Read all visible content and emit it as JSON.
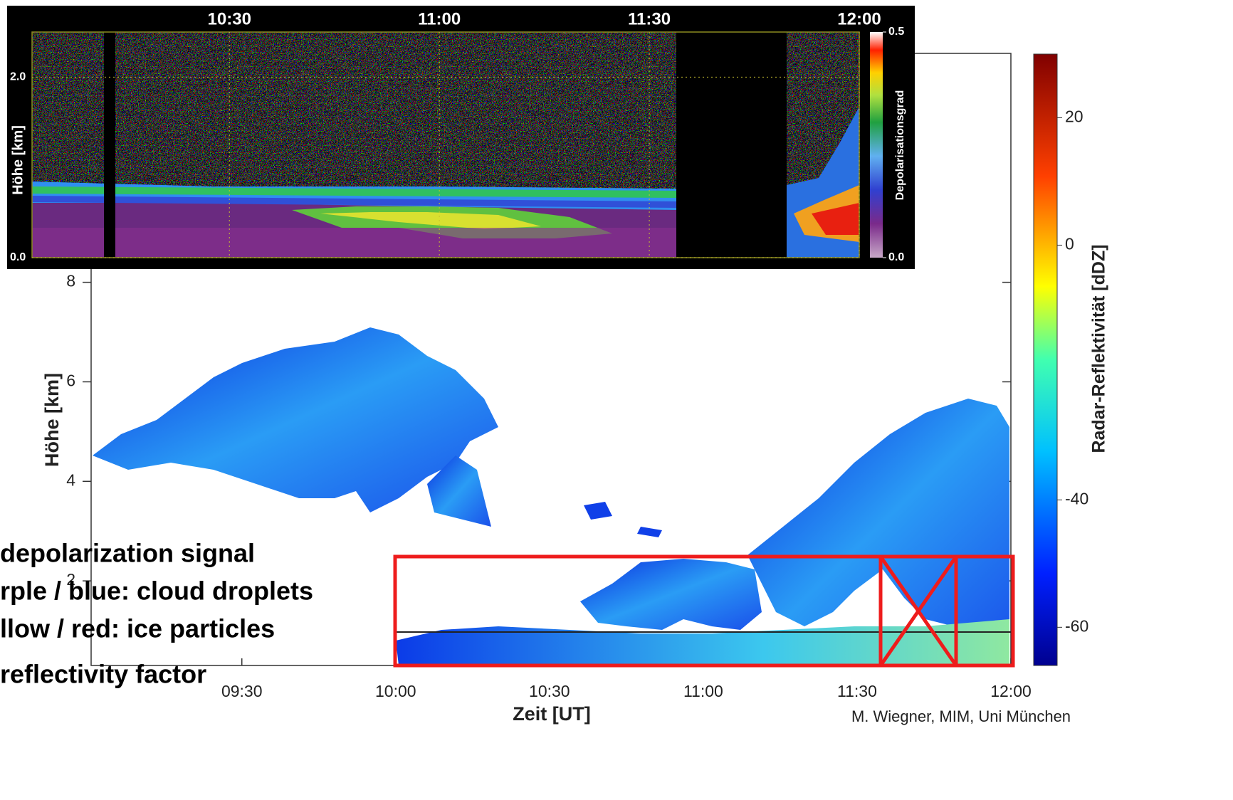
{
  "radar": {
    "y_label": "Höhe [km]",
    "x_label": "Zeit [UT]",
    "xlim": [
      9.01,
      12
    ],
    "xticks": [
      {
        "value": 9.5,
        "label": "09:30"
      },
      {
        "value": 10,
        "label": "10:00"
      },
      {
        "value": 10.5,
        "label": "10:30"
      },
      {
        "value": 11,
        "label": "11:00"
      },
      {
        "value": 11.5,
        "label": "11:30"
      },
      {
        "value": 12,
        "label": "12:00"
      }
    ],
    "ylim": [
      0.3,
      12.6
    ],
    "yticks": [
      2,
      4,
      6,
      8
    ]
  },
  "reflectivity_colorbar": {
    "label": "Radar-Reflektivität [dDZ]",
    "lim": [
      -66,
      30
    ],
    "ticks": [
      20,
      0,
      -40,
      -60
    ]
  },
  "lidar": {
    "y_label": "Höhe [km]",
    "xlim": [
      10.03,
      12
    ],
    "xticks": [
      {
        "value": 10.5,
        "label": "10:30"
      },
      {
        "value": 11,
        "label": "11:00"
      },
      {
        "value": 11.5,
        "label": "11:30"
      },
      {
        "value": 12,
        "label": "12:00"
      }
    ],
    "ylim": [
      0,
      2.5
    ],
    "yticks": [
      {
        "value": 0,
        "label": "0.0"
      },
      {
        "value": 2,
        "label": "2.0"
      }
    ]
  },
  "depolarization_colorbar": {
    "label": "Depolarisationsgrad",
    "lim": [
      0,
      0.5
    ],
    "ticks": [
      {
        "value": 0,
        "label": "0.0"
      },
      {
        "value": 0.5,
        "label": "0.5"
      }
    ]
  },
  "annotations": [
    "depolarization signal",
    "rple / blue: cloud droplets",
    "llow / red: ice particles",
    "reflectivity factor"
  ],
  "credit": "M. Wiegner, MIM, Uni München"
}
